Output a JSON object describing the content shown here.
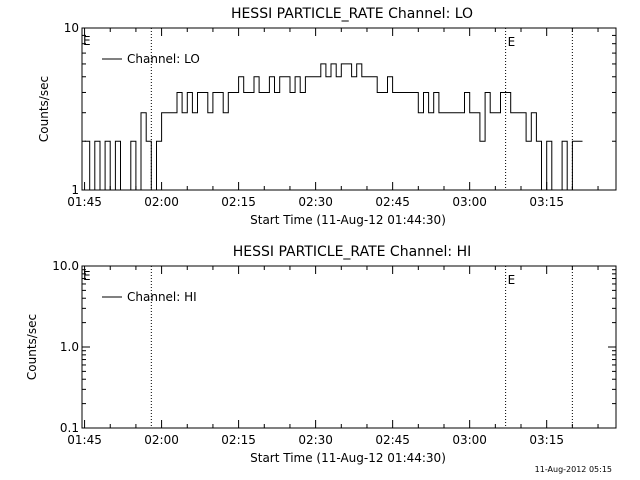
{
  "footer_timestamp": "11-Aug-2012 05:15",
  "x_tick_labels": [
    "01:45",
    "02:00",
    "02:15",
    "02:30",
    "02:45",
    "03:00",
    "03:15"
  ],
  "chart_data": [
    {
      "type": "line",
      "title": "HESSI PARTICLE_RATE Channel: LO",
      "xlabel": "Start Time (11-Aug-12 01:44:30)",
      "ylabel": "Counts/sec",
      "y_scale": "log",
      "ylim": [
        1,
        10
      ],
      "y_tick_labels": [
        "1",
        "10"
      ],
      "legend": "top-left",
      "event_markers": [
        {
          "time": "01:58",
          "label": ""
        },
        {
          "time": "03:07",
          "label": "E"
        },
        {
          "time": "03:20",
          "label": ""
        }
      ],
      "edge_label": "E",
      "series": [
        {
          "name": "Channel: LO",
          "x": [
            "01:45",
            "01:46",
            "01:47",
            "01:48",
            "01:49",
            "01:50",
            "01:51",
            "01:52",
            "01:53",
            "01:54",
            "01:55",
            "01:56",
            "01:57",
            "01:58",
            "01:59",
            "02:00",
            "02:01",
            "02:02",
            "02:03",
            "02:04",
            "02:05",
            "02:06",
            "02:07",
            "02:08",
            "02:09",
            "02:10",
            "02:11",
            "02:12",
            "02:13",
            "02:14",
            "02:15",
            "02:16",
            "02:17",
            "02:18",
            "02:19",
            "02:20",
            "02:21",
            "02:22",
            "02:23",
            "02:24",
            "02:25",
            "02:26",
            "02:27",
            "02:28",
            "02:29",
            "02:30",
            "02:31",
            "02:32",
            "02:33",
            "02:34",
            "02:35",
            "02:36",
            "02:37",
            "02:38",
            "02:39",
            "02:40",
            "02:41",
            "02:42",
            "02:43",
            "02:44",
            "02:45",
            "02:46",
            "02:47",
            "02:48",
            "02:49",
            "02:50",
            "02:51",
            "02:52",
            "02:53",
            "02:54",
            "02:55",
            "02:56",
            "02:57",
            "02:58",
            "02:59",
            "03:00",
            "03:01",
            "03:02",
            "03:03",
            "03:04",
            "03:05",
            "03:06",
            "03:07",
            "03:08",
            "03:09",
            "03:10",
            "03:11",
            "03:12",
            "03:13",
            "03:14",
            "03:15",
            "03:16",
            "03:17",
            "03:18",
            "03:19",
            "03:20",
            "03:21"
          ],
          "values": [
            2,
            1,
            2,
            1,
            2,
            1,
            2,
            1,
            1,
            2,
            1,
            3,
            2,
            1,
            2,
            3,
            3,
            3,
            4,
            3,
            4,
            3,
            4,
            4,
            3,
            4,
            4,
            3,
            4,
            4,
            5,
            4,
            4,
            5,
            4,
            4,
            5,
            4,
            5,
            5,
            4,
            5,
            4,
            5,
            5,
            5,
            6,
            5,
            6,
            5,
            6,
            6,
            5,
            6,
            5,
            5,
            5,
            4,
            4,
            5,
            4,
            4,
            4,
            4,
            4,
            3,
            4,
            3,
            4,
            3,
            3,
            3,
            3,
            3,
            4,
            3,
            3,
            2,
            4,
            3,
            3,
            4,
            4,
            3,
            3,
            3,
            2,
            3,
            2,
            1,
            2,
            1,
            1,
            2,
            1,
            2,
            2
          ]
        }
      ]
    },
    {
      "type": "line",
      "title": "HESSI PARTICLE_RATE Channel: HI",
      "xlabel": "Start Time (11-Aug-12 01:44:30)",
      "ylabel": "Counts/sec",
      "y_scale": "log",
      "ylim": [
        0.1,
        10
      ],
      "y_tick_labels": [
        "0.1",
        "1.0",
        "10.0"
      ],
      "legend": "top-left",
      "event_markers": [
        {
          "time": "01:58",
          "label": ""
        },
        {
          "time": "03:07",
          "label": "E"
        },
        {
          "time": "03:20",
          "label": ""
        }
      ],
      "edge_label": "E",
      "series": [
        {
          "name": "Channel: HI",
          "x": [],
          "values": []
        }
      ]
    }
  ]
}
